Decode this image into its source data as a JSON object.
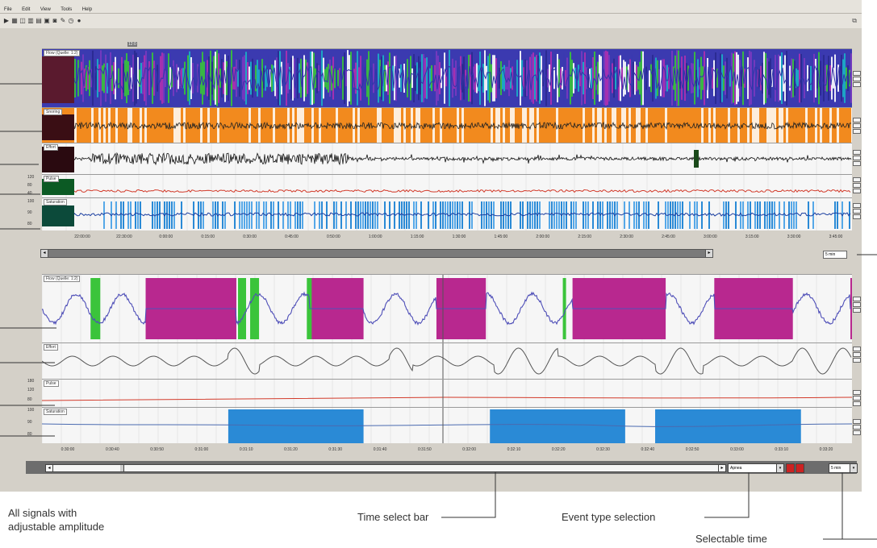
{
  "menu": [
    "File",
    "Edit",
    "View",
    "Tools",
    "Help"
  ],
  "toolbar_icons": [
    "play-icon",
    "grid-icon",
    "chart-icon",
    "bar-icon",
    "print-icon",
    "image-icon",
    "settings-icon",
    "brush-icon",
    "clock-icon",
    "camera-icon",
    "restore-icon"
  ],
  "overview": {
    "channels": [
      {
        "key": "flow",
        "label": "Flow (Quelle: 1:2)",
        "color": "#3a3fb0"
      },
      {
        "key": "snoring",
        "label": "Snoring",
        "color": "#222222"
      },
      {
        "key": "effort",
        "label": "Effort",
        "color": "#111111"
      },
      {
        "key": "pulse",
        "label": "Pulse",
        "color": "#d23a2a",
        "y_ticks": [
          "120",
          "80",
          "40"
        ]
      },
      {
        "key": "saturation",
        "label": "Saturation",
        "color": "#2a62c4",
        "y_ticks": [
          "100",
          "90",
          "80"
        ]
      }
    ],
    "time_ticks": [
      "22:00:00",
      "22:30:00",
      "0:00:00",
      "0:15:00",
      "0:30:00",
      "0:45:00",
      "0:50:00",
      "1:00:00",
      "1:15:00",
      "1:30:00",
      "1:45:00",
      "2:00:00",
      "2:15:00",
      "2:30:00",
      "2:45:00",
      "3:00:00",
      "3:15:00",
      "3:30:00",
      "3:45:00"
    ],
    "marker_label": "12:0",
    "time_select_value": "5 min"
  },
  "detail": {
    "channels": [
      {
        "key": "flow",
        "label": "Flow (Quelle: 1:2)",
        "color": "#4f4fb8"
      },
      {
        "key": "effort",
        "label": "Effort",
        "color": "#555555"
      },
      {
        "key": "pulse",
        "label": "Pulse",
        "color": "#d23a2a",
        "y_ticks": [
          "180",
          "120",
          "80"
        ]
      },
      {
        "key": "saturation",
        "label": "Saturation",
        "color": "#4a6ab0",
        "y_ticks": [
          "100",
          "90",
          "80"
        ]
      }
    ],
    "time_ticks": [
      "0:30:00",
      "0:30:40",
      "0:30:50",
      "0:31:00",
      "0:31:10",
      "0:31:20",
      "0:31:30",
      "0:31:40",
      "0:31:50",
      "0:32:00",
      "0:32:10",
      "0:32:20",
      "0:32:30",
      "0:32:40",
      "0:32:50",
      "0:33:00",
      "0:33:10",
      "0:33:20"
    ],
    "flow_events": [
      {
        "type": "arousal",
        "start": 0.06,
        "end": 0.072
      },
      {
        "type": "apnea",
        "start": 0.128,
        "end": 0.24
      },
      {
        "type": "arousal",
        "start": 0.242,
        "end": 0.252
      },
      {
        "type": "arousal",
        "start": 0.257,
        "end": 0.268
      },
      {
        "type": "apnea",
        "start": 0.33,
        "end": 0.397
      },
      {
        "type": "arousal",
        "start": 0.327,
        "end": 0.333
      },
      {
        "type": "apnea",
        "start": 0.487,
        "end": 0.548
      },
      {
        "type": "arousal",
        "start": 0.643,
        "end": 0.647
      },
      {
        "type": "apnea",
        "start": 0.655,
        "end": 0.77
      },
      {
        "type": "apnea",
        "start": 0.83,
        "end": 0.927
      },
      {
        "type": "apnea",
        "start": 0.998,
        "end": 1.0
      }
    ],
    "sat_events": [
      {
        "start": 0.23,
        "end": 0.397
      },
      {
        "start": 0.553,
        "end": 0.72
      },
      {
        "start": 0.757,
        "end": 0.937
      }
    ],
    "event_type_value": "Apnea",
    "time_value": "5 min"
  },
  "colors": {
    "apnea": "#b8288f",
    "arousal": "#3bc43b",
    "desat": "#2a8ad6",
    "pulse": "#d23a2a"
  },
  "captions": {
    "all_signals_line1": "All signals with",
    "all_signals_line2": "adjustable amplitude",
    "time_select_bar": "Time select bar",
    "event_type_selection": "Event type selection",
    "selectable_time": "Selectable time"
  }
}
